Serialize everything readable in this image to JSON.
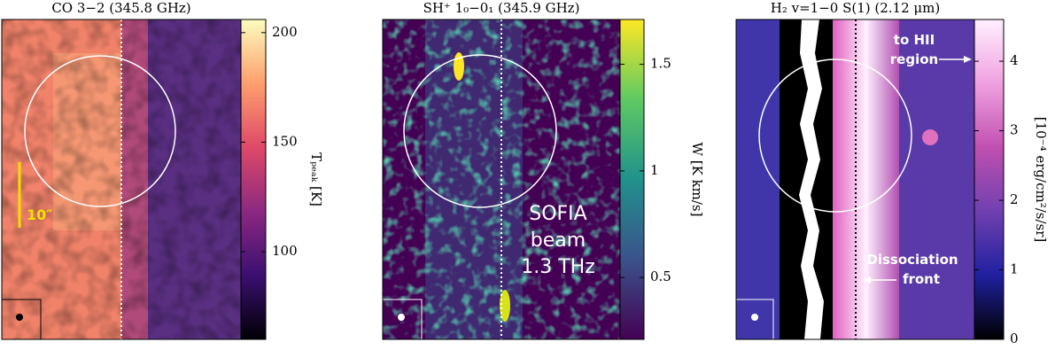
{
  "chart_data": [
    {
      "type": "image",
      "title": "CO 3−2 (345.8 GHz)",
      "colorbar_label": "Tₚₑₐₖ [K]",
      "clim": [
        60,
        206
      ],
      "cticks": [
        100,
        150,
        200
      ],
      "colormap": [
        "#000004",
        "#3b0f70",
        "#8c2981",
        "#de4968",
        "#fe9f6d",
        "#fcfdbf"
      ],
      "annotations": [
        "10″"
      ]
    },
    {
      "type": "image",
      "title": "SH⁺ 1₀−0₁ (345.9 GHz)",
      "colorbar_label": "W [K km/s]",
      "clim": [
        0.21,
        1.71
      ],
      "cticks": [
        0.5,
        1,
        1.5
      ],
      "colormap": [
        "#440154",
        "#3b528b",
        "#21918c",
        "#5ec962",
        "#fde725"
      ],
      "annotations": [
        "SOFIA",
        "beam",
        "1.3 THz"
      ]
    },
    {
      "type": "image",
      "title": "H₂  v=1−0 S(1) (2.12 μm)",
      "colorbar_label": "[10⁻⁴ erg/cm²/s/sr]",
      "clim": [
        0,
        4.6
      ],
      "cticks": [
        0,
        1,
        2,
        3,
        4
      ],
      "colormap": [
        "#000000",
        "#2020a0",
        "#7040b0",
        "#c050b0",
        "#f0a0e0",
        "#fff0ff"
      ],
      "annotations": [
        "to HII",
        "region",
        "Dissociation",
        "front"
      ]
    }
  ]
}
